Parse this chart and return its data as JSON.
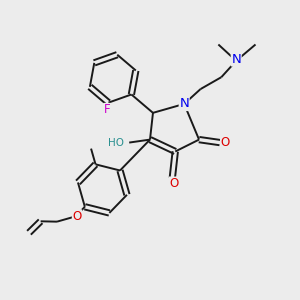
{
  "background_color": "#ececec",
  "figsize": [
    3.0,
    3.0
  ],
  "dpi": 100,
  "atom_colors": {
    "N": "#0000ee",
    "O": "#dd0000",
    "F": "#cc00cc",
    "C": "#1a1a1a",
    "H": "#2a9090"
  },
  "bond_color": "#1a1a1a",
  "bond_width": 1.4,
  "font_size_atom": 8.5,
  "font_size_small": 7.0,
  "xlim": [
    0,
    10
  ],
  "ylim": [
    0,
    10
  ]
}
